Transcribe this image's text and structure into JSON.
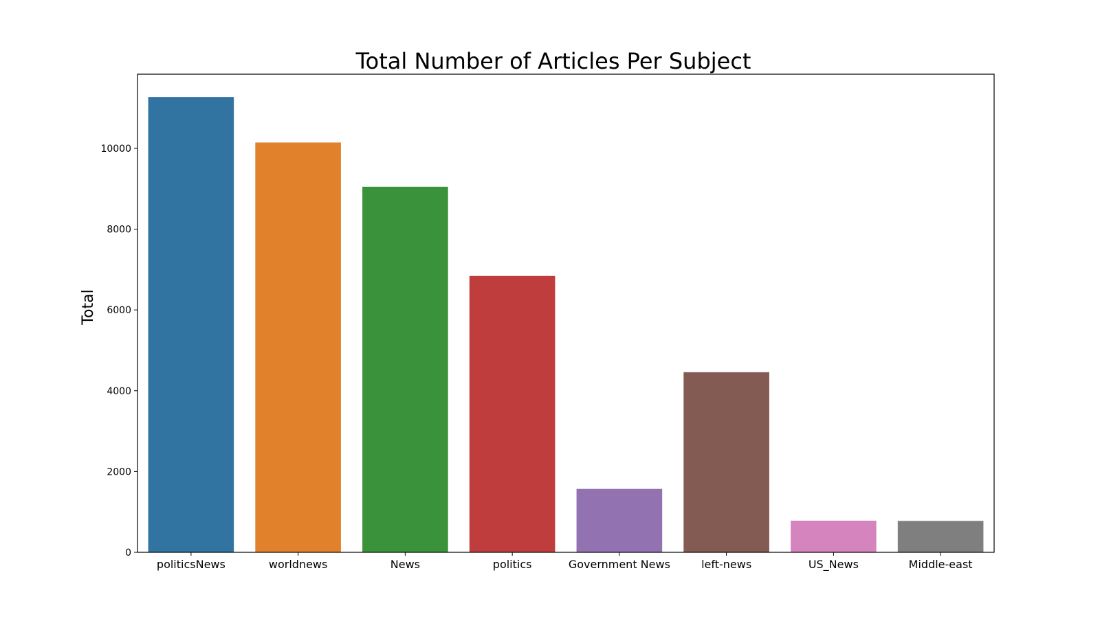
{
  "chart_data": {
    "type": "bar",
    "title": "Total Number of Articles Per Subject",
    "xlabel": "",
    "ylabel": "Total",
    "categories": [
      "politicsNews",
      "worldnews",
      "News",
      "politics",
      "Government News",
      "left-news",
      "US_News",
      "Middle-east"
    ],
    "values": [
      11272,
      10145,
      9050,
      6841,
      1570,
      4459,
      783,
      778
    ],
    "colors": [
      "#3274a1",
      "#e1812c",
      "#3a923a",
      "#c03d3e",
      "#9372b2",
      "#845b53",
      "#d684bd",
      "#7f7f7f"
    ],
    "ylim": [
      0,
      11836
    ],
    "yticks": [
      0,
      2000,
      4000,
      6000,
      8000,
      10000
    ],
    "ytick_labels": [
      "0",
      "2000",
      "4000",
      "6000",
      "8000",
      "10000"
    ],
    "grid": false,
    "legend": false
  }
}
